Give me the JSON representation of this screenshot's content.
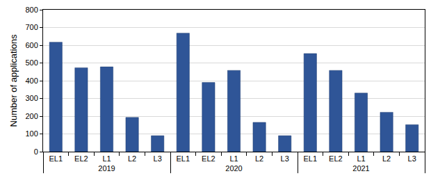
{
  "chart_data": {
    "type": "bar",
    "categories": [
      "EL1",
      "EL2",
      "L1",
      "L2",
      "L3",
      "EL1",
      "EL2",
      "L1",
      "L2",
      "L3",
      "EL1",
      "EL2",
      "L1",
      "L2",
      "L3"
    ],
    "category_groups": [
      "2019",
      "2019",
      "2019",
      "2019",
      "2019",
      "2020",
      "2020",
      "2020",
      "2020",
      "2020",
      "2021",
      "2021",
      "2021",
      "2021",
      "2021"
    ],
    "values": [
      617,
      473,
      478,
      193,
      90,
      668,
      390,
      458,
      165,
      90,
      553,
      458,
      330,
      222,
      152
    ],
    "color": "#2f5597",
    "y_label": "Number of applications",
    "ylim": [
      0,
      800
    ],
    "yticks": [
      0,
      100,
      200,
      300,
      400,
      500,
      600,
      700,
      800
    ],
    "grid": true
  }
}
